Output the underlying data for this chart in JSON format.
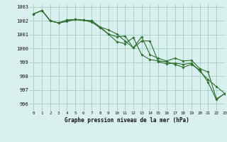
{
  "title": "Graphe pression niveau de la mer (hPa)",
  "xlim": [
    -0.5,
    23
  ],
  "ylim": [
    995.5,
    1003.2
  ],
  "xticks": [
    0,
    1,
    2,
    3,
    4,
    5,
    6,
    7,
    8,
    9,
    10,
    11,
    12,
    13,
    14,
    15,
    16,
    17,
    18,
    19,
    20,
    21,
    22,
    23
  ],
  "yticks": [
    996,
    997,
    998,
    999,
    1000,
    1001,
    1002,
    1003
  ],
  "background_color": "#d8f0ee",
  "grid_color": "#a8cfc8",
  "line_color": "#2d6e2d",
  "series1": [
    1002.5,
    1002.75,
    1002.0,
    1001.85,
    1002.05,
    1002.1,
    1002.05,
    1002.0,
    1001.55,
    1001.05,
    1000.85,
    1000.9,
    1000.05,
    1000.85,
    999.55,
    999.3,
    999.1,
    999.3,
    999.1,
    999.15,
    998.55,
    998.3,
    996.35,
    996.75
  ],
  "series2": [
    1002.5,
    1002.75,
    1002.0,
    1001.85,
    1002.05,
    1002.1,
    1002.05,
    1002.0,
    1001.55,
    1001.35,
    1001.05,
    1000.55,
    1000.05,
    1000.55,
    1000.55,
    999.05,
    998.9,
    998.95,
    998.85,
    998.95,
    998.35,
    997.75,
    997.25,
    996.75
  ],
  "series3": [
    1002.5,
    1002.75,
    1002.0,
    1001.85,
    1001.95,
    1002.1,
    1002.05,
    1001.9,
    1001.5,
    1001.05,
    1000.5,
    1000.35,
    1000.8,
    999.55,
    999.2,
    999.1,
    999.05,
    998.85,
    998.65,
    998.85,
    998.45,
    997.55,
    996.3,
    996.75
  ]
}
